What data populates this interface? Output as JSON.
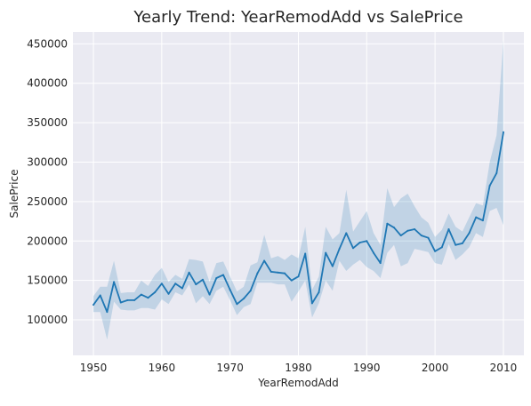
{
  "chart_data": {
    "type": "line",
    "title": "Yearly Trend: YearRemodAdd vs SalePrice",
    "xlabel": "YearRemodAdd",
    "ylabel": "SalePrice",
    "xlim": [
      1947,
      2013
    ],
    "ylim": [
      55000,
      465000
    ],
    "xticks": [
      1950,
      1960,
      1970,
      1980,
      1990,
      2000,
      2010
    ],
    "yticks": [
      100000,
      150000,
      200000,
      250000,
      300000,
      350000,
      400000,
      450000
    ],
    "grid": true,
    "series": [
      {
        "name": "SalePrice",
        "color": "#1f77b4",
        "band_color": "#1f77b4",
        "x": [
          1950,
          1951,
          1952,
          1953,
          1954,
          1955,
          1956,
          1957,
          1958,
          1959,
          1960,
          1961,
          1962,
          1963,
          1964,
          1965,
          1966,
          1967,
          1968,
          1969,
          1970,
          1971,
          1972,
          1973,
          1974,
          1975,
          1976,
          1977,
          1978,
          1979,
          1980,
          1981,
          1982,
          1983,
          1984,
          1985,
          1986,
          1987,
          1988,
          1989,
          1990,
          1991,
          1992,
          1993,
          1994,
          1995,
          1996,
          1997,
          1998,
          1999,
          2000,
          2001,
          2002,
          2003,
          2004,
          2005,
          2006,
          2007,
          2008,
          2009,
          2010
        ],
        "y": [
          119000,
          131000,
          110000,
          148000,
          122000,
          125000,
          125000,
          132000,
          128000,
          135000,
          146000,
          133000,
          146000,
          140000,
          160000,
          145000,
          151000,
          132000,
          153000,
          157000,
          138000,
          120000,
          127000,
          137000,
          159000,
          175000,
          161000,
          160000,
          159000,
          150000,
          155000,
          184000,
          121000,
          135000,
          185000,
          168000,
          190000,
          210000,
          191000,
          198000,
          200000,
          185000,
          172000,
          222000,
          217000,
          207000,
          213000,
          215000,
          207000,
          204000,
          187000,
          192000,
          215000,
          195000,
          197000,
          210000,
          230000,
          226000,
          270000,
          286000,
          338000
        ],
        "ci_low": [
          110000,
          110000,
          75000,
          123000,
          113000,
          112000,
          112000,
          115000,
          115000,
          113000,
          126000,
          120000,
          135000,
          131000,
          145000,
          121000,
          130000,
          120000,
          137000,
          142000,
          125000,
          106000,
          116000,
          120000,
          147000,
          147000,
          147000,
          145000,
          145000,
          123000,
          136000,
          150000,
          103000,
          121000,
          150000,
          137000,
          175000,
          162000,
          170000,
          176000,
          167000,
          162000,
          153000,
          185000,
          195000,
          168000,
          172000,
          190000,
          188000,
          186000,
          172000,
          170000,
          196000,
          176000,
          183000,
          192000,
          210000,
          205000,
          238000,
          242000,
          220000
        ],
        "ci_high": [
          130000,
          142000,
          142000,
          175000,
          134000,
          135000,
          135000,
          150000,
          143000,
          157000,
          166000,
          148000,
          157000,
          152000,
          177000,
          176000,
          174000,
          148000,
          172000,
          174000,
          155000,
          136000,
          142000,
          169000,
          173000,
          208000,
          178000,
          181000,
          176000,
          183000,
          178000,
          218000,
          138000,
          155000,
          218000,
          202000,
          210000,
          265000,
          212000,
          225000,
          238000,
          210000,
          195000,
          267000,
          243000,
          254000,
          260000,
          244000,
          230000,
          223000,
          205000,
          214000,
          235000,
          218000,
          212000,
          230000,
          248000,
          245000,
          300000,
          334000,
          455000
        ]
      }
    ]
  }
}
